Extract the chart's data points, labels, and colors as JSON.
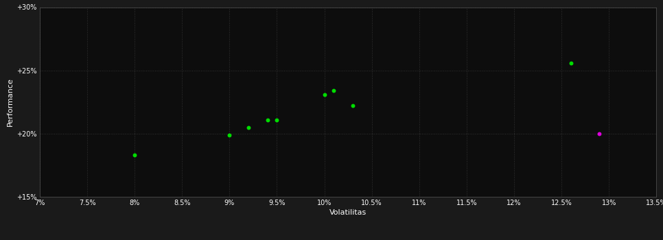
{
  "xlabel": "Volatilitas",
  "ylabel": "Performance",
  "background_color": "#1a1a1a",
  "plot_bg_color": "#0d0d0d",
  "grid_color": "#3a3a3a",
  "text_color": "#ffffff",
  "xlim": [
    0.07,
    0.135
  ],
  "ylim": [
    0.15,
    0.3
  ],
  "xticks": [
    0.07,
    0.075,
    0.08,
    0.085,
    0.09,
    0.095,
    0.1,
    0.105,
    0.11,
    0.115,
    0.12,
    0.125,
    0.13,
    0.135
  ],
  "yticks": [
    0.15,
    0.2,
    0.25,
    0.3
  ],
  "green_points": [
    [
      0.08,
      0.183
    ],
    [
      0.09,
      0.199
    ],
    [
      0.092,
      0.205
    ],
    [
      0.094,
      0.211
    ],
    [
      0.095,
      0.211
    ],
    [
      0.1,
      0.231
    ],
    [
      0.101,
      0.234
    ],
    [
      0.103,
      0.222
    ],
    [
      0.126,
      0.256
    ]
  ],
  "magenta_points": [
    [
      0.129,
      0.2
    ]
  ],
  "green_color": "#00dd00",
  "magenta_color": "#dd00dd",
  "dot_size": 18
}
